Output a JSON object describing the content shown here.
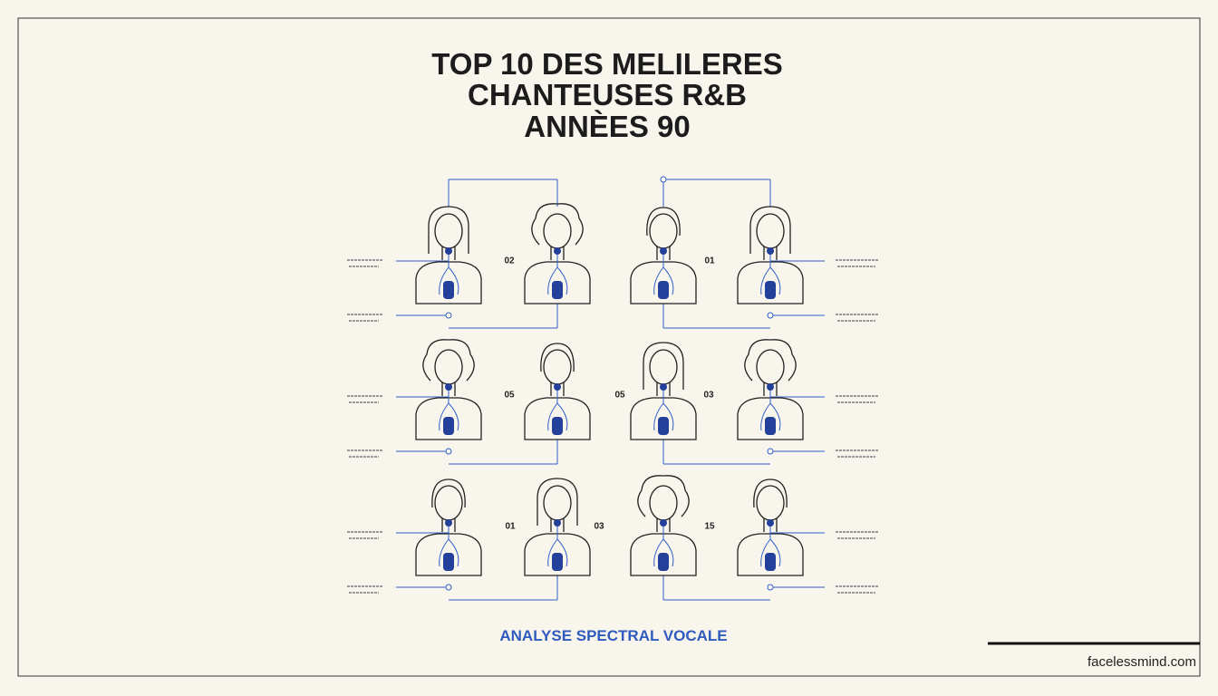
{
  "header": {
    "title_lines": [
      "TOP 10 DES MELILERES",
      "CHANTEUSES R&B",
      "ANNÈES 90"
    ]
  },
  "rank_labels": [
    "02",
    "01",
    "05",
    "05",
    "03",
    "01",
    "03",
    "15"
  ],
  "footer": {
    "caption": "ANALYSE SPECTRAL VOCALE",
    "brand": "facelessmind.com"
  }
}
